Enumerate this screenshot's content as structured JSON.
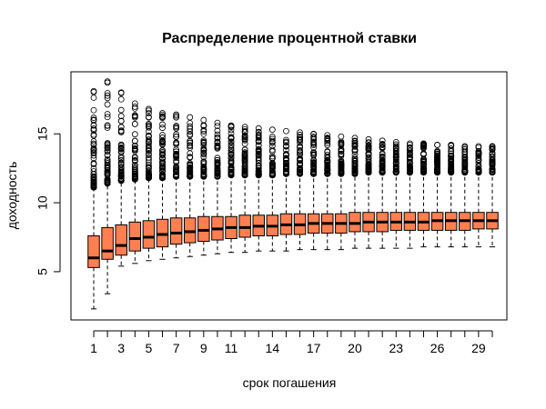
{
  "chart_data": {
    "type": "boxplot",
    "title": "Распределение процентной ставки",
    "xlabel": "срок погашения",
    "ylabel": "доходность",
    "ylim": [
      1.5,
      19.5
    ],
    "y_ticks": [
      5,
      10,
      15
    ],
    "x_ticks": [
      1,
      3,
      5,
      7,
      9,
      11,
      14,
      17,
      20,
      23,
      26,
      29
    ],
    "box_color": "#FF7F50",
    "grid": false,
    "legend": "none",
    "categories": [
      1,
      2,
      3,
      4,
      5,
      6,
      7,
      8,
      9,
      10,
      11,
      12,
      13,
      14,
      15,
      16,
      17,
      18,
      19,
      20,
      21,
      22,
      23,
      24,
      25,
      26,
      27,
      28,
      29,
      30
    ],
    "boxes": [
      {
        "x": 1,
        "whisker_low": 2.3,
        "q1": 5.3,
        "median": 6.0,
        "q3": 7.6,
        "whisker_high": 11.0,
        "outlier_max": 18.1
      },
      {
        "x": 2,
        "whisker_low": 3.4,
        "q1": 5.9,
        "median": 6.5,
        "q3": 8.2,
        "whisker_high": 11.3,
        "outlier_max": 18.8
      },
      {
        "x": 3,
        "whisker_low": 5.4,
        "q1": 6.2,
        "median": 6.9,
        "q3": 8.4,
        "whisker_high": 11.5,
        "outlier_max": 18.0
      },
      {
        "x": 4,
        "whisker_low": 5.6,
        "q1": 6.5,
        "median": 7.4,
        "q3": 8.6,
        "whisker_high": 11.6,
        "outlier_max": 17.2
      },
      {
        "x": 5,
        "whisker_low": 5.8,
        "q1": 6.7,
        "median": 7.5,
        "q3": 8.7,
        "whisker_high": 11.7,
        "outlier_max": 16.8
      },
      {
        "x": 6,
        "whisker_low": 5.9,
        "q1": 6.8,
        "median": 7.7,
        "q3": 8.8,
        "whisker_high": 11.7,
        "outlier_max": 16.5
      },
      {
        "x": 7,
        "whisker_low": 6.0,
        "q1": 7.0,
        "median": 7.8,
        "q3": 8.9,
        "whisker_high": 11.8,
        "outlier_max": 16.4
      },
      {
        "x": 8,
        "whisker_low": 6.1,
        "q1": 7.1,
        "median": 7.9,
        "q3": 8.9,
        "whisker_high": 11.8,
        "outlier_max": 16.2
      },
      {
        "x": 9,
        "whisker_low": 6.2,
        "q1": 7.2,
        "median": 8.0,
        "q3": 9.0,
        "whisker_high": 11.8,
        "outlier_max": 16.0
      },
      {
        "x": 10,
        "whisker_low": 6.3,
        "q1": 7.3,
        "median": 8.1,
        "q3": 9.0,
        "whisker_high": 11.8,
        "outlier_max": 15.8
      },
      {
        "x": 11,
        "whisker_low": 6.4,
        "q1": 7.4,
        "median": 8.2,
        "q3": 9.0,
        "whisker_high": 11.9,
        "outlier_max": 15.6
      },
      {
        "x": 12,
        "whisker_low": 6.4,
        "q1": 7.5,
        "median": 8.2,
        "q3": 9.1,
        "whisker_high": 11.9,
        "outlier_max": 15.5
      },
      {
        "x": 13,
        "whisker_low": 6.5,
        "q1": 7.6,
        "median": 8.3,
        "q3": 9.1,
        "whisker_high": 11.9,
        "outlier_max": 15.4
      },
      {
        "x": 14,
        "whisker_low": 6.5,
        "q1": 7.6,
        "median": 8.3,
        "q3": 9.1,
        "whisker_high": 11.9,
        "outlier_max": 15.3
      },
      {
        "x": 15,
        "whisker_low": 6.5,
        "q1": 7.7,
        "median": 8.4,
        "q3": 9.2,
        "whisker_high": 12.0,
        "outlier_max": 15.2
      },
      {
        "x": 16,
        "whisker_low": 6.6,
        "q1": 7.7,
        "median": 8.4,
        "q3": 9.2,
        "whisker_high": 12.0,
        "outlier_max": 15.1
      },
      {
        "x": 17,
        "whisker_low": 6.6,
        "q1": 7.8,
        "median": 8.5,
        "q3": 9.2,
        "whisker_high": 12.0,
        "outlier_max": 15.0
      },
      {
        "x": 18,
        "whisker_low": 6.6,
        "q1": 7.8,
        "median": 8.5,
        "q3": 9.2,
        "whisker_high": 12.0,
        "outlier_max": 14.9
      },
      {
        "x": 19,
        "whisker_low": 6.6,
        "q1": 7.8,
        "median": 8.5,
        "q3": 9.2,
        "whisker_high": 12.0,
        "outlier_max": 14.8
      },
      {
        "x": 20,
        "whisker_low": 6.7,
        "q1": 7.9,
        "median": 8.5,
        "q3": 9.3,
        "whisker_high": 12.0,
        "outlier_max": 14.7
      },
      {
        "x": 21,
        "whisker_low": 6.7,
        "q1": 7.9,
        "median": 8.6,
        "q3": 9.3,
        "whisker_high": 12.1,
        "outlier_max": 14.6
      },
      {
        "x": 22,
        "whisker_low": 6.7,
        "q1": 7.9,
        "median": 8.6,
        "q3": 9.3,
        "whisker_high": 12.1,
        "outlier_max": 14.5
      },
      {
        "x": 23,
        "whisker_low": 6.7,
        "q1": 8.0,
        "median": 8.6,
        "q3": 9.3,
        "whisker_high": 12.1,
        "outlier_max": 14.4
      },
      {
        "x": 24,
        "whisker_low": 6.7,
        "q1": 8.0,
        "median": 8.6,
        "q3": 9.3,
        "whisker_high": 12.1,
        "outlier_max": 14.3
      },
      {
        "x": 25,
        "whisker_low": 6.8,
        "q1": 8.0,
        "median": 8.6,
        "q3": 9.3,
        "whisker_high": 12.1,
        "outlier_max": 14.3
      },
      {
        "x": 26,
        "whisker_low": 6.8,
        "q1": 8.0,
        "median": 8.7,
        "q3": 9.3,
        "whisker_high": 12.1,
        "outlier_max": 14.2
      },
      {
        "x": 27,
        "whisker_low": 6.8,
        "q1": 8.0,
        "median": 8.7,
        "q3": 9.3,
        "whisker_high": 12.1,
        "outlier_max": 14.2
      },
      {
        "x": 28,
        "whisker_low": 6.8,
        "q1": 8.0,
        "median": 8.7,
        "q3": 9.3,
        "whisker_high": 12.1,
        "outlier_max": 14.1
      },
      {
        "x": 29,
        "whisker_low": 6.8,
        "q1": 8.1,
        "median": 8.7,
        "q3": 9.3,
        "whisker_high": 12.1,
        "outlier_max": 14.1
      },
      {
        "x": 30,
        "whisker_low": 6.8,
        "q1": 8.1,
        "median": 8.7,
        "q3": 9.3,
        "whisker_high": 12.1,
        "outlier_max": 14.1
      }
    ]
  }
}
